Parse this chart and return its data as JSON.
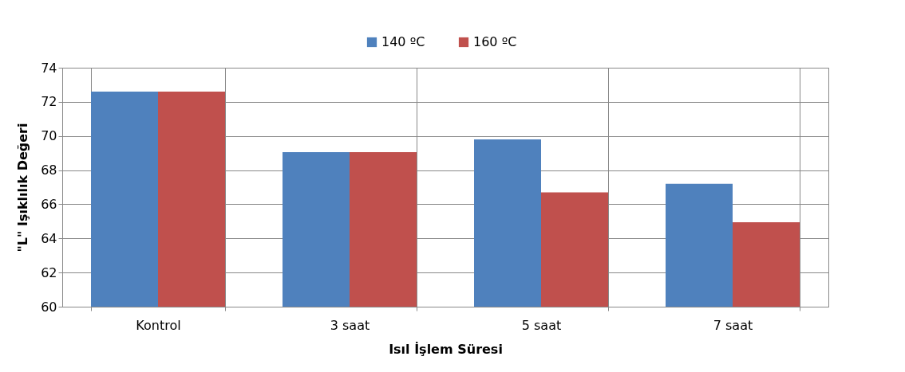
{
  "chart_data": {
    "type": "bar",
    "xlabel": "Isıl İşlem Süresi",
    "ylabel": "\"L\" Işıklılık  Değeri",
    "categories": [
      "Kontrol",
      "3 saat",
      "5 saat",
      "7 saat"
    ],
    "series": [
      {
        "name": "140 ºC",
        "color": "#4f81bd",
        "values": [
          72.6,
          69.05,
          69.8,
          67.2
        ]
      },
      {
        "name": "160 ºC",
        "color": "#c0504d",
        "values": [
          72.6,
          69.05,
          66.7,
          64.95
        ]
      }
    ],
    "ylim": [
      60,
      74
    ],
    "yticks": [
      60,
      62,
      64,
      66,
      68,
      70,
      72,
      74
    ],
    "grid": true,
    "legend": "top"
  }
}
